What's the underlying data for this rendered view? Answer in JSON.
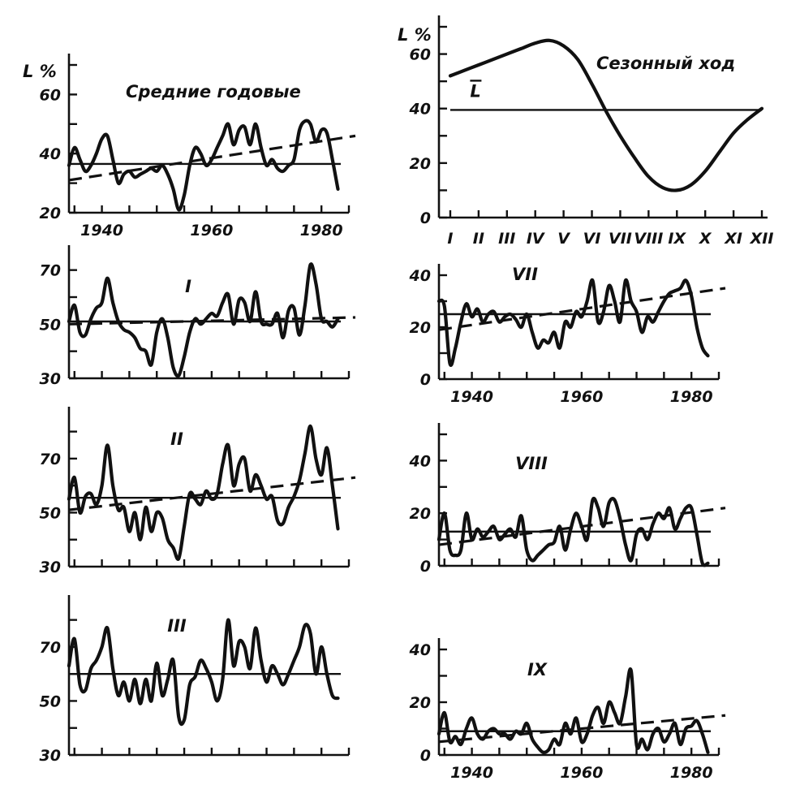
{
  "chart_data": [
    {
      "id": "annual",
      "type": "line",
      "title": "Средние годовые",
      "ylabel": "L %",
      "xlim": [
        1934,
        1985
      ],
      "ylim": [
        20,
        70
      ],
      "yticks": [
        20,
        40,
        60
      ],
      "xticks": [
        1940,
        1960,
        1980
      ],
      "x": [
        1934,
        1935,
        1936,
        1937,
        1938,
        1939,
        1940,
        1941,
        1942,
        1943,
        1944,
        1945,
        1946,
        1947,
        1948,
        1949,
        1950,
        1951,
        1952,
        1953,
        1954,
        1955,
        1956,
        1957,
        1958,
        1959,
        1960,
        1961,
        1962,
        1963,
        1964,
        1965,
        1966,
        1967,
        1968,
        1969,
        1970,
        1971,
        1972,
        1973,
        1974,
        1975,
        1976,
        1977,
        1978,
        1979,
        1980,
        1981,
        1982,
        1983
      ],
      "values": [
        36,
        42,
        38,
        34,
        36,
        40,
        45,
        46,
        38,
        30,
        33,
        34,
        32,
        33,
        34,
        35,
        34,
        36,
        33,
        28,
        21,
        26,
        36,
        42,
        40,
        36,
        38,
        42,
        46,
        50,
        43,
        48,
        49,
        43,
        50,
        42,
        36,
        38,
        35,
        34,
        36,
        38,
        48,
        51,
        50,
        44,
        48,
        47,
        38,
        28
      ],
      "mean": 36.5,
      "trend": [
        31,
        46
      ]
    },
    {
      "id": "seasonal",
      "type": "line",
      "title": "Сезонный ход",
      "ylabel": "L %",
      "mean_label": "L",
      "ylim": [
        0,
        70
      ],
      "yticks": [
        0,
        20,
        40,
        60
      ],
      "categories": [
        "I",
        "II",
        "III",
        "IV",
        "V",
        "VI",
        "VII",
        "VIII",
        "IX",
        "X",
        "XI",
        "XII"
      ],
      "x": [
        1.0,
        1.5,
        2.0,
        2.5,
        3.0,
        3.5,
        4.0,
        4.5,
        5.0,
        5.5,
        6.0,
        6.5,
        7.0,
        7.5,
        8.0,
        8.5,
        9.0,
        9.5,
        10.0,
        10.5,
        11.0,
        11.5,
        12.0
      ],
      "values": [
        52,
        54,
        56,
        58,
        60,
        62,
        64,
        65,
        63,
        58,
        49,
        39,
        30,
        22,
        15,
        11,
        10,
        12,
        17,
        24,
        31,
        36,
        40
      ],
      "mean": 39.5
    },
    {
      "id": "jan",
      "type": "line",
      "title": "I",
      "xlim": [
        1934,
        1985
      ],
      "ylim": [
        30,
        75
      ],
      "yticks": [
        30,
        50,
        70
      ],
      "x": [
        1934,
        1935,
        1936,
        1937,
        1938,
        1939,
        1940,
        1941,
        1942,
        1943,
        1944,
        1945,
        1946,
        1947,
        1948,
        1949,
        1950,
        1951,
        1952,
        1953,
        1954,
        1955,
        1956,
        1957,
        1958,
        1959,
        1960,
        1961,
        1962,
        1963,
        1964,
        1965,
        1966,
        1967,
        1968,
        1969,
        1970,
        1971,
        1972,
        1973,
        1974,
        1975,
        1976,
        1977,
        1978,
        1979,
        1980,
        1981,
        1982,
        1983
      ],
      "values": [
        51,
        57,
        47,
        46,
        52,
        56,
        58,
        67,
        58,
        51,
        48,
        47,
        45,
        41,
        40,
        35,
        47,
        52,
        45,
        34,
        31,
        38,
        47,
        52,
        50,
        52,
        54,
        53,
        58,
        61,
        50,
        59,
        58,
        51,
        62,
        51,
        50,
        50,
        54,
        45,
        55,
        56,
        46,
        57,
        72,
        65,
        52,
        51,
        49,
        52
      ],
      "mean": 51,
      "trend": [
        50,
        52.5
      ]
    },
    {
      "id": "feb",
      "type": "line",
      "title": "II",
      "xlim": [
        1934,
        1985
      ],
      "ylim": [
        30,
        85
      ],
      "yticks": [
        30,
        50,
        70
      ],
      "x": [
        1934,
        1935,
        1936,
        1937,
        1938,
        1939,
        1940,
        1941,
        1942,
        1943,
        1944,
        1945,
        1946,
        1947,
        1948,
        1949,
        1950,
        1951,
        1952,
        1953,
        1954,
        1955,
        1956,
        1957,
        1958,
        1959,
        1960,
        1961,
        1962,
        1963,
        1964,
        1965,
        1966,
        1967,
        1968,
        1969,
        1970,
        1971,
        1972,
        1973,
        1974,
        1975,
        1976,
        1977,
        1978,
        1979,
        1980,
        1981,
        1982,
        1983
      ],
      "values": [
        55,
        63,
        50,
        56,
        57,
        53,
        60,
        75,
        60,
        51,
        52,
        43,
        50,
        40,
        52,
        43,
        50,
        48,
        40,
        37,
        33,
        45,
        57,
        55,
        53,
        58,
        55,
        57,
        68,
        75,
        60,
        68,
        70,
        58,
        64,
        60,
        55,
        56,
        47,
        46,
        52,
        56,
        62,
        72,
        82,
        70,
        64,
        74,
        60,
        44
      ],
      "mean": 55.5,
      "trend": [
        51,
        63
      ]
    },
    {
      "id": "mar",
      "type": "line",
      "title": "III",
      "xlim": [
        1934,
        1985
      ],
      "ylim": [
        30,
        85
      ],
      "yticks": [
        30,
        50,
        70
      ],
      "x": [
        1934,
        1935,
        1936,
        1937,
        1938,
        1939,
        1940,
        1941,
        1942,
        1943,
        1944,
        1945,
        1946,
        1947,
        1948,
        1949,
        1950,
        1951,
        1952,
        1953,
        1954,
        1955,
        1956,
        1957,
        1958,
        1959,
        1960,
        1961,
        1962,
        1963,
        1964,
        1965,
        1966,
        1967,
        1968,
        1969,
        1970,
        1971,
        1972,
        1973,
        1974,
        1975,
        1976,
        1977,
        1978,
        1979,
        1980,
        1981,
        1982,
        1983
      ],
      "values": [
        63,
        73,
        56,
        54,
        62,
        65,
        70,
        77,
        62,
        52,
        57,
        50,
        58,
        49,
        58,
        50,
        64,
        52,
        58,
        65,
        44,
        43,
        56,
        59,
        65,
        62,
        57,
        50,
        58,
        80,
        63,
        72,
        70,
        62,
        77,
        65,
        57,
        63,
        60,
        56,
        60,
        65,
        70,
        78,
        75,
        60,
        70,
        60,
        52,
        51
      ],
      "mean": 60
    },
    {
      "id": "jul",
      "type": "line",
      "title": "VII",
      "xlim": [
        1934,
        1985
      ],
      "ylim": [
        0,
        40
      ],
      "yticks": [
        0,
        20,
        40
      ],
      "xticks": [
        1940,
        1960,
        1980
      ],
      "x": [
        1934,
        1935,
        1936,
        1937,
        1938,
        1939,
        1940,
        1941,
        1942,
        1943,
        1944,
        1945,
        1946,
        1947,
        1948,
        1949,
        1950,
        1951,
        1952,
        1953,
        1954,
        1955,
        1956,
        1957,
        1958,
        1959,
        1960,
        1961,
        1962,
        1963,
        1964,
        1965,
        1966,
        1967,
        1968,
        1969,
        1970,
        1971,
        1972,
        1973,
        1974,
        1975,
        1976,
        1977,
        1978,
        1979,
        1980,
        1981,
        1982,
        1983
      ],
      "values": [
        30,
        28,
        6,
        12,
        22,
        29,
        24,
        27,
        22,
        25,
        26,
        22,
        24,
        25,
        23,
        20,
        25,
        18,
        12,
        15,
        14,
        18,
        12,
        22,
        20,
        26,
        24,
        30,
        38,
        22,
        26,
        36,
        30,
        22,
        38,
        30,
        26,
        18,
        24,
        22,
        26,
        30,
        33,
        34,
        35,
        38,
        32,
        20,
        12,
        9
      ],
      "mean": 25,
      "trend": [
        19,
        35
      ]
    },
    {
      "id": "aug",
      "type": "line",
      "title": "VIII",
      "xlim": [
        1934,
        1985
      ],
      "ylim": [
        0,
        50
      ],
      "yticks": [
        0,
        20,
        40
      ],
      "x": [
        1934,
        1935,
        1936,
        1937,
        1938,
        1939,
        1940,
        1941,
        1942,
        1943,
        1944,
        1945,
        1946,
        1947,
        1948,
        1949,
        1950,
        1951,
        1952,
        1953,
        1954,
        1955,
        1956,
        1957,
        1958,
        1959,
        1960,
        1961,
        1962,
        1963,
        1964,
        1965,
        1966,
        1967,
        1968,
        1969,
        1970,
        1971,
        1972,
        1973,
        1974,
        1975,
        1976,
        1977,
        1978,
        1979,
        1980,
        1981,
        1982,
        1983
      ],
      "values": [
        10,
        20,
        6,
        4,
        6,
        20,
        10,
        14,
        11,
        13,
        15,
        10,
        12,
        14,
        11,
        19,
        6,
        2,
        4,
        6,
        8,
        9,
        15,
        6,
        14,
        20,
        15,
        10,
        25,
        22,
        15,
        24,
        25,
        18,
        8,
        2,
        12,
        14,
        10,
        16,
        20,
        18,
        22,
        14,
        18,
        22,
        22,
        12,
        1,
        1
      ],
      "mean": 13,
      "trend": [
        8,
        22
      ]
    },
    {
      "id": "sep",
      "type": "line",
      "title": "IX",
      "xlim": [
        1934,
        1985
      ],
      "ylim": [
        0,
        40
      ],
      "yticks": [
        0,
        20,
        40
      ],
      "xticks": [
        1940,
        1960,
        1980
      ],
      "x": [
        1934,
        1935,
        1936,
        1937,
        1938,
        1939,
        1940,
        1941,
        1942,
        1943,
        1944,
        1945,
        1946,
        1947,
        1948,
        1949,
        1950,
        1951,
        1952,
        1953,
        1954,
        1955,
        1956,
        1957,
        1958,
        1959,
        1960,
        1961,
        1962,
        1963,
        1964,
        1965,
        1966,
        1967,
        1968,
        1969,
        1970,
        1971,
        1972,
        1973,
        1974,
        1975,
        1976,
        1977,
        1978,
        1979,
        1980,
        1981,
        1982,
        1983
      ],
      "values": [
        8,
        16,
        5,
        7,
        4,
        10,
        14,
        8,
        6,
        9,
        10,
        8,
        8,
        6,
        9,
        8,
        12,
        6,
        3,
        1,
        2,
        6,
        4,
        12,
        8,
        14,
        5,
        8,
        15,
        18,
        12,
        20,
        16,
        12,
        22,
        32,
        4,
        6,
        2,
        8,
        10,
        5,
        8,
        12,
        4,
        10,
        11,
        13,
        8,
        1
      ],
      "mean": 9,
      "trend": [
        5,
        15
      ]
    }
  ]
}
